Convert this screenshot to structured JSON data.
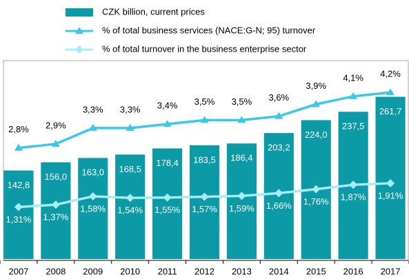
{
  "chart_data": {
    "type": "bar_line",
    "categories": [
      "2007",
      "2008",
      "2009",
      "2010",
      "2011",
      "2012",
      "2013",
      "2014",
      "2015",
      "2016",
      "2017"
    ],
    "ylim": [
      0,
      320
    ],
    "y2lim": [
      0,
      5
    ],
    "series": [
      {
        "name": "CZK billion, current prices",
        "type": "bar",
        "color": "#0b9aa6",
        "values": [
          142.8,
          156.0,
          163.0,
          168.5,
          178.4,
          183.5,
          186.4,
          203.2,
          224.0,
          237.5,
          261.7
        ],
        "value_labels": [
          "142,8",
          "156,0",
          "163,0",
          "168,5",
          "178,4",
          "183,5",
          "186,4",
          "203,2",
          "224,0",
          "237,5",
          "261,7"
        ]
      },
      {
        "name": "% of total business services (NACE:G-N; 95) turnover",
        "type": "line",
        "axis": "y2",
        "marker": "triangle",
        "color": "#3cc6ea",
        "values": [
          2.8,
          2.9,
          3.3,
          3.3,
          3.4,
          3.5,
          3.5,
          3.6,
          3.9,
          4.1,
          4.2
        ],
        "value_labels": [
          "2,8%",
          "2,9%",
          "3,3%",
          "3,3%",
          "3,4%",
          "3,5%",
          "3,5%",
          "3,6%",
          "3,9%",
          "4,1%",
          "4,2%"
        ]
      },
      {
        "name": "% of total turnover in the business enterprise sector",
        "type": "line",
        "axis": "y2",
        "marker": "diamond",
        "color": "#a6ecf4",
        "values": [
          1.31,
          1.37,
          1.58,
          1.54,
          1.55,
          1.57,
          1.59,
          1.66,
          1.76,
          1.87,
          1.91
        ],
        "value_labels": [
          "1,31%",
          "1,37%",
          "1,58%",
          "1,54%",
          "1,55%",
          "1,57%",
          "1,59%",
          "1,66%",
          "1,76%",
          "1,87%",
          "1,91%"
        ]
      }
    ]
  }
}
